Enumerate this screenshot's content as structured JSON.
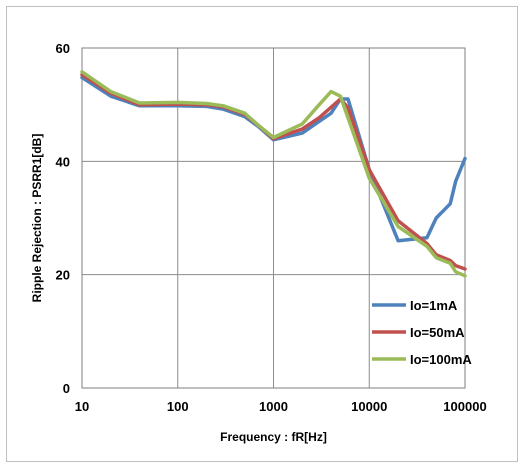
{
  "chart_data": {
    "type": "line",
    "title": "",
    "xlabel": "Frequency : fR[Hz]",
    "ylabel": "Ripple Rejection : PSRR1[dB]",
    "xscale": "log",
    "xlim": [
      10,
      100000
    ],
    "ylim": [
      0,
      60
    ],
    "x_ticks": [
      10,
      100,
      1000,
      10000,
      100000
    ],
    "x_tick_labels": [
      "10",
      "100",
      "1000",
      "10000",
      "100000"
    ],
    "y_ticks": [
      0,
      20,
      40,
      60
    ],
    "y_tick_labels": [
      "0",
      "20",
      "40",
      "60"
    ],
    "grid": true,
    "legend_position": "bottom-right",
    "series": [
      {
        "name": "Io=1mA",
        "color": "#4f81bd",
        "x": [
          10,
          20,
          40,
          100,
          200,
          300,
          500,
          700,
          1000,
          2000,
          4000,
          5000,
          6000,
          10000,
          20000,
          40000,
          50000,
          70000,
          80000,
          100000
        ],
        "y": [
          54.8,
          51.5,
          49.8,
          49.8,
          49.7,
          49.2,
          47.9,
          46.1,
          43.8,
          45.0,
          48.5,
          51.0,
          51.0,
          38.5,
          26.0,
          26.5,
          30.0,
          32.5,
          36.5,
          40.5
        ]
      },
      {
        "name": "Io=50mA",
        "color": "#c0504d",
        "x": [
          10,
          20,
          40,
          100,
          200,
          300,
          500,
          700,
          1000,
          2000,
          3000,
          5000,
          6000,
          10000,
          20000,
          40000,
          50000,
          70000,
          80000,
          100000
        ],
        "y": [
          55.3,
          52.0,
          50.0,
          50.1,
          50.0,
          49.6,
          48.3,
          46.3,
          44.0,
          45.7,
          47.7,
          51.0,
          49.5,
          38.5,
          29.5,
          25.5,
          23.5,
          22.5,
          21.6,
          21.0
        ]
      },
      {
        "name": "Io=100mA",
        "color": "#9bbb59",
        "x": [
          10,
          20,
          40,
          100,
          200,
          300,
          500,
          700,
          1000,
          2000,
          3000,
          4000,
          5000,
          10000,
          20000,
          40000,
          50000,
          70000,
          80000,
          100000
        ],
        "y": [
          55.8,
          52.3,
          50.3,
          50.4,
          50.2,
          49.8,
          48.5,
          46.3,
          44.2,
          46.6,
          50.0,
          52.3,
          51.5,
          37.0,
          28.5,
          25.0,
          23.0,
          22.0,
          20.5,
          19.8
        ]
      }
    ]
  }
}
